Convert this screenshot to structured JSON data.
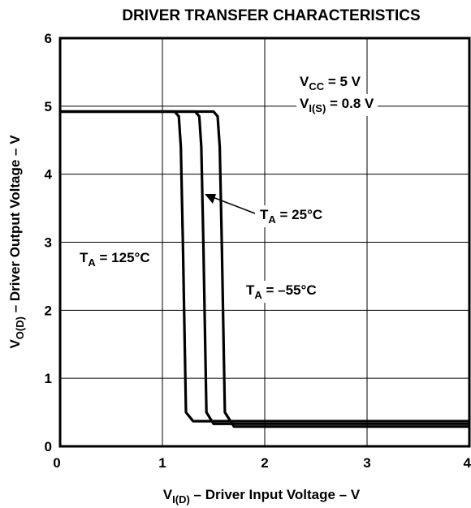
{
  "chart_data": {
    "type": "line",
    "title": "DRIVER TRANSFER CHARACTERISTICS",
    "xlabel": {
      "main": "V",
      "sub": "I(D)",
      "rest": " – Driver Input Voltage – V"
    },
    "ylabel": {
      "main": "V",
      "sub": "O(D)",
      "rest": " – Driver Output Voltage – V"
    },
    "xlim": [
      0,
      4
    ],
    "ylim": [
      0,
      6
    ],
    "xticks": [
      "0",
      "1",
      "2",
      "3",
      "4"
    ],
    "yticks": [
      "0",
      "1",
      "2",
      "3",
      "4",
      "5",
      "6"
    ],
    "grid": true,
    "conditions": [
      {
        "main": "V",
        "sub": "CC",
        "rest": " = 5 V"
      },
      {
        "main": "V",
        "sub": "I(S)",
        "rest": " = 0.8 V"
      }
    ],
    "series": [
      {
        "name": "125°C",
        "label": {
          "main": "T",
          "sub": "A",
          "rest": " = 125°C"
        },
        "x": [
          0,
          1.12,
          1.16,
          1.18,
          1.2,
          1.23,
          1.3,
          4.0
        ],
        "y": [
          4.92,
          4.92,
          4.85,
          4.4,
          3.0,
          0.5,
          0.37,
          0.37
        ]
      },
      {
        "name": "25°C",
        "label": {
          "main": "T",
          "sub": "A",
          "rest": " = 25°C"
        },
        "x": [
          0,
          1.32,
          1.36,
          1.38,
          1.4,
          1.43,
          1.5,
          4.0
        ],
        "y": [
          4.92,
          4.92,
          4.85,
          4.4,
          3.0,
          0.5,
          0.33,
          0.33
        ]
      },
      {
        "name": "-55°C",
        "label": {
          "main": "T",
          "sub": "A",
          "rest": " = –55°C"
        },
        "x": [
          0,
          1.5,
          1.54,
          1.56,
          1.58,
          1.61,
          1.7,
          4.0
        ],
        "y": [
          4.92,
          4.92,
          4.85,
          4.4,
          3.0,
          0.5,
          0.29,
          0.29
        ]
      }
    ]
  }
}
